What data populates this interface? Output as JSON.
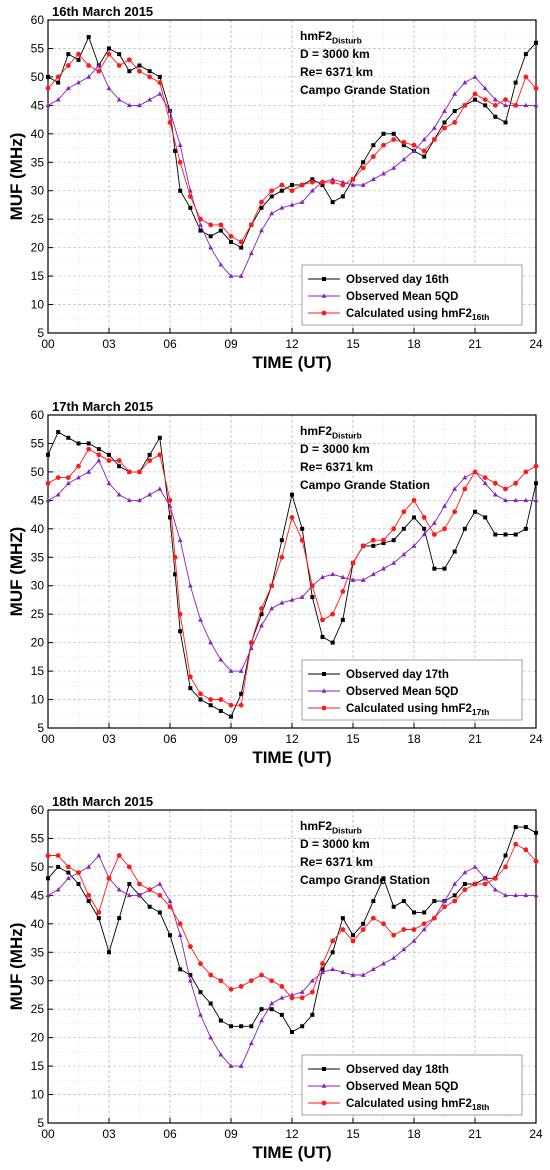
{
  "chart_data": [
    {
      "type": "line",
      "title": "16th March 2015",
      "xlabel": "TIME (UT)",
      "ylabel": "MUF (MHz)",
      "xlim": [
        0,
        24
      ],
      "ylim": [
        5,
        60
      ],
      "xticks": [
        "00",
        "03",
        "06",
        "09",
        "12",
        "15",
        "18",
        "21",
        "24"
      ],
      "yticks": [
        "5",
        "10",
        "15",
        "20",
        "25",
        "30",
        "35",
        "40",
        "45",
        "50",
        "55",
        "60"
      ],
      "annotation": {
        "l1_main": "hmF2",
        "l1_sub": "Disturb",
        "l2": "D = 3000 km",
        "l3": "Re= 6371 km",
        "l4": "Campo Grande Station"
      },
      "legend_position": "bottom-right",
      "series": [
        {
          "name": "Observed day 16th",
          "name_sub": "",
          "color": "#000000",
          "marker": "square",
          "x": [
            0,
            0.5,
            1,
            1.5,
            2,
            2.5,
            3,
            3.5,
            4,
            4.5,
            5,
            5.5,
            6,
            6.25,
            6.5,
            7,
            7.5,
            8,
            8.5,
            9,
            9.5,
            10,
            10.5,
            11,
            11.5,
            12,
            12.5,
            13,
            13.5,
            14,
            14.5,
            15,
            15.5,
            16,
            16.5,
            17,
            17.5,
            18,
            18.5,
            19,
            19.5,
            20,
            20.5,
            21,
            21.5,
            22,
            22.5,
            23,
            23.5,
            24
          ],
          "y": [
            50,
            49,
            54,
            53,
            57,
            52,
            55,
            54,
            51,
            52,
            51,
            50,
            44,
            37,
            30,
            27,
            23,
            22,
            23,
            21,
            20,
            24,
            27,
            29,
            30,
            31,
            31,
            32,
            31,
            28,
            29,
            32,
            35,
            38,
            40,
            40,
            38,
            37,
            36,
            39,
            42,
            44,
            45,
            46,
            45,
            43,
            42,
            49,
            54,
            56
          ]
        },
        {
          "name": "Observed Mean 5QD",
          "name_sub": "",
          "color": "#8a1fbf",
          "marker": "triangle",
          "x": [
            0,
            0.5,
            1,
            1.5,
            2,
            2.5,
            3,
            3.5,
            4,
            4.5,
            5,
            5.5,
            6,
            6.5,
            7,
            7.5,
            8,
            8.5,
            9,
            9.5,
            10,
            10.5,
            11,
            11.5,
            12,
            12.5,
            13,
            13.5,
            14,
            14.5,
            15,
            15.5,
            16,
            16.5,
            17,
            17.5,
            18,
            18.5,
            19,
            19.5,
            20,
            20.5,
            21,
            21.5,
            22,
            22.5,
            23,
            23.5,
            24
          ],
          "y": [
            45,
            46,
            48,
            49,
            50,
            52,
            48,
            46,
            45,
            45,
            46,
            47,
            44,
            38,
            30,
            24,
            20,
            17,
            15,
            15,
            19,
            23,
            26,
            27,
            27.5,
            28,
            30,
            31.5,
            32,
            31.5,
            31,
            31,
            32,
            33,
            34,
            35.5,
            37,
            39,
            41,
            44,
            47,
            49,
            50,
            48,
            46,
            45,
            45,
            45,
            45
          ]
        },
        {
          "name": "Calculated using hmF2",
          "name_sub": "16th",
          "color": "#ff1a1a",
          "marker": "circle",
          "x": [
            0,
            0.5,
            1,
            1.5,
            2,
            2.5,
            3,
            3.5,
            4,
            4.5,
            5,
            5.5,
            6,
            6.5,
            7,
            7.5,
            8,
            8.5,
            9,
            9.5,
            10,
            10.5,
            11,
            11.5,
            12,
            12.5,
            13,
            13.5,
            14,
            14.5,
            15,
            15.5,
            16,
            16.5,
            17,
            17.5,
            18,
            18.5,
            19,
            19.5,
            20,
            20.5,
            21,
            21.5,
            22,
            22.5,
            23,
            23.5,
            24
          ],
          "y": [
            48,
            50,
            52,
            54,
            52,
            51,
            54,
            52,
            53,
            51,
            50,
            49,
            42,
            35,
            29,
            25,
            24,
            24,
            22,
            21,
            24,
            28,
            30,
            31,
            30,
            31,
            31.5,
            31.5,
            31.5,
            31,
            32,
            34,
            36,
            38,
            39,
            38.5,
            38,
            37,
            39,
            41,
            42,
            45,
            47,
            46,
            45,
            46,
            45,
            50,
            48
          ]
        }
      ]
    },
    {
      "type": "line",
      "title": "17th March 2015",
      "xlabel": "TIME (UT)",
      "ylabel": "MUF (MHZ)",
      "xlim": [
        0,
        24
      ],
      "ylim": [
        5,
        60
      ],
      "xticks": [
        "00",
        "03",
        "06",
        "09",
        "12",
        "15",
        "18",
        "21",
        "24"
      ],
      "yticks": [
        "5",
        "10",
        "15",
        "20",
        "25",
        "30",
        "35",
        "40",
        "45",
        "50",
        "55",
        "60"
      ],
      "annotation": {
        "l1_main": "hmF2",
        "l1_sub": "Disturb",
        "l2": "D = 3000 km",
        "l3": "Re= 6371 km",
        "l4": "Campo Grande Station"
      },
      "legend_position": "bottom-right",
      "series": [
        {
          "name": "Observed day 17th",
          "name_sub": "",
          "color": "#000000",
          "marker": "square",
          "x": [
            0,
            0.5,
            1,
            1.5,
            2,
            2.5,
            3,
            3.5,
            4,
            4.5,
            5,
            5.5,
            6,
            6.25,
            6.5,
            7,
            7.5,
            8,
            8.5,
            9,
            9.5,
            10,
            10.5,
            11,
            11.5,
            12,
            12.5,
            13,
            13.5,
            14,
            14.5,
            15,
            15.5,
            16,
            16.5,
            17,
            17.5,
            18,
            18.5,
            19,
            19.5,
            20,
            20.5,
            21,
            21.5,
            22,
            22.5,
            23,
            23.5,
            24
          ],
          "y": [
            53,
            57,
            56,
            55,
            55,
            54,
            53,
            51,
            50,
            50,
            53,
            56,
            42,
            32,
            22,
            12,
            10,
            9,
            8,
            7,
            11,
            20,
            25,
            30,
            38,
            46,
            40,
            28,
            21,
            20,
            24,
            34,
            37,
            37,
            37.5,
            38,
            40,
            42,
            40,
            33,
            33,
            36,
            40,
            43,
            42,
            39,
            39,
            39,
            40,
            48
          ]
        },
        {
          "name": "Observed Mean 5QD",
          "name_sub": "",
          "color": "#8a1fbf",
          "marker": "triangle",
          "x": [
            0,
            0.5,
            1,
            1.5,
            2,
            2.5,
            3,
            3.5,
            4,
            4.5,
            5,
            5.5,
            6,
            6.5,
            7,
            7.5,
            8,
            8.5,
            9,
            9.5,
            10,
            10.5,
            11,
            11.5,
            12,
            12.5,
            13,
            13.5,
            14,
            14.5,
            15,
            15.5,
            16,
            16.5,
            17,
            17.5,
            18,
            18.5,
            19,
            19.5,
            20,
            20.5,
            21,
            21.5,
            22,
            22.5,
            23,
            23.5,
            24
          ],
          "y": [
            45,
            46,
            48,
            49,
            50,
            52,
            48,
            46,
            45,
            45,
            46,
            47,
            44,
            38,
            30,
            24,
            20,
            17,
            15,
            15,
            19,
            23,
            26,
            27,
            27.5,
            28,
            30,
            31.5,
            32,
            31.5,
            31,
            31,
            32,
            33,
            34,
            35.5,
            37,
            39,
            41,
            44,
            47,
            49,
            50,
            48,
            46,
            45,
            45,
            45,
            45
          ]
        },
        {
          "name": "Calculated using hmF2",
          "name_sub": "17th",
          "color": "#ff1a1a",
          "marker": "circle",
          "x": [
            0,
            0.5,
            1,
            1.5,
            2,
            2.5,
            3,
            3.5,
            4,
            4.5,
            5,
            5.5,
            6,
            6.25,
            6.5,
            7,
            7.5,
            8,
            8.5,
            9,
            9.5,
            10,
            10.5,
            11,
            11.5,
            12,
            12.5,
            13,
            13.5,
            14,
            14.5,
            15,
            15.5,
            16,
            16.5,
            17,
            17.5,
            18,
            18.5,
            19,
            19.5,
            20,
            20.5,
            21,
            21.5,
            22,
            22.5,
            23,
            23.5,
            24
          ],
          "y": [
            48,
            49,
            49,
            51,
            54,
            53,
            52,
            52,
            50,
            50,
            52,
            53,
            45,
            35,
            25,
            14,
            11,
            10,
            10,
            9,
            9,
            20,
            26,
            30,
            35,
            42,
            38,
            30,
            24,
            25,
            29,
            34,
            37,
            38,
            38,
            40,
            43,
            45,
            42,
            39,
            40,
            43,
            47,
            50,
            49,
            48,
            47,
            48,
            50,
            51
          ]
        }
      ]
    },
    {
      "type": "line",
      "title": "18th March 2015",
      "xlabel": "TIME (UT)",
      "ylabel": "MUF (MHz)",
      "xlim": [
        0,
        24
      ],
      "ylim": [
        5,
        60
      ],
      "xticks": [
        "00",
        "03",
        "06",
        "09",
        "12",
        "15",
        "18",
        "21",
        "24"
      ],
      "yticks": [
        "5",
        "10",
        "15",
        "20",
        "25",
        "30",
        "35",
        "40",
        "45",
        "50",
        "55",
        "60"
      ],
      "annotation": {
        "l1_main": "hmF2",
        "l1_sub": "Disturb",
        "l2": "D = 3000 km",
        "l3": "Re= 6371 km",
        "l4": "Campo Grande Station"
      },
      "legend_position": "bottom-right",
      "series": [
        {
          "name": "Observed day 18th",
          "name_sub": "",
          "color": "#000000",
          "marker": "square",
          "x": [
            0,
            0.5,
            1,
            1.5,
            2,
            2.5,
            3,
            3.5,
            4,
            4.5,
            5,
            5.5,
            6,
            6.5,
            7,
            7.5,
            8,
            8.5,
            9,
            9.5,
            10,
            10.5,
            11,
            11.5,
            12,
            12.5,
            13,
            13.5,
            14,
            14.5,
            15,
            15.5,
            16,
            16.5,
            17,
            17.5,
            18,
            18.5,
            19,
            19.5,
            20,
            20.5,
            21,
            21.5,
            22,
            22.5,
            23,
            23.5,
            24
          ],
          "y": [
            48,
            50,
            49,
            47,
            44,
            41,
            35,
            41,
            47,
            45,
            43,
            42,
            38,
            32,
            31,
            28,
            26,
            23,
            22,
            22,
            22,
            25,
            25,
            24,
            21,
            22,
            24,
            32,
            35,
            41,
            38,
            40,
            44,
            48,
            43,
            44,
            42,
            42,
            44,
            44,
            45,
            47,
            47,
            48,
            48,
            52,
            57,
            57,
            56
          ]
        },
        {
          "name": "Observed Mean 5QD",
          "name_sub": "",
          "color": "#8a1fbf",
          "marker": "triangle",
          "x": [
            0,
            0.5,
            1,
            1.5,
            2,
            2.5,
            3,
            3.5,
            4,
            4.5,
            5,
            5.5,
            6,
            6.5,
            7,
            7.5,
            8,
            8.5,
            9,
            9.5,
            10,
            10.5,
            11,
            11.5,
            12,
            12.5,
            13,
            13.5,
            14,
            14.5,
            15,
            15.5,
            16,
            16.5,
            17,
            17.5,
            18,
            18.5,
            19,
            19.5,
            20,
            20.5,
            21,
            21.5,
            22,
            22.5,
            23,
            23.5,
            24
          ],
          "y": [
            45,
            46,
            48,
            49,
            50,
            52,
            48,
            46,
            45,
            45,
            46,
            47,
            44,
            38,
            30,
            24,
            20,
            17,
            15,
            15,
            19,
            23,
            26,
            27,
            27.5,
            28,
            30,
            31.5,
            32,
            31.5,
            31,
            31,
            32,
            33,
            34,
            35.5,
            37,
            39,
            41,
            44,
            47,
            49,
            50,
            48,
            46,
            45,
            45,
            45,
            45
          ]
        },
        {
          "name": "Calculated using hmF2",
          "name_sub": "18th",
          "color": "#ff1a1a",
          "marker": "circle",
          "x": [
            0,
            0.5,
            1,
            1.5,
            2,
            2.5,
            3,
            3.5,
            4,
            4.5,
            5,
            5.5,
            6,
            6.5,
            7,
            7.5,
            8,
            8.5,
            9,
            9.5,
            10,
            10.5,
            11,
            11.5,
            12,
            12.5,
            13,
            13.5,
            14,
            14.5,
            15,
            15.5,
            16,
            16.5,
            17,
            17.5,
            18,
            18.5,
            19,
            19.5,
            20,
            20.5,
            21,
            21.5,
            22,
            22.5,
            23,
            23.5,
            24
          ],
          "y": [
            52,
            52,
            50,
            49,
            45,
            42,
            48,
            52,
            50,
            47,
            46,
            45,
            43,
            40,
            36,
            33,
            31,
            30,
            28.5,
            29,
            30,
            31,
            30,
            29,
            27,
            27,
            28,
            33,
            37,
            39,
            37,
            39,
            41,
            40,
            38,
            39,
            39,
            40,
            41,
            43,
            44,
            46,
            47,
            47,
            48,
            50,
            54,
            53,
            51
          ]
        }
      ]
    }
  ]
}
